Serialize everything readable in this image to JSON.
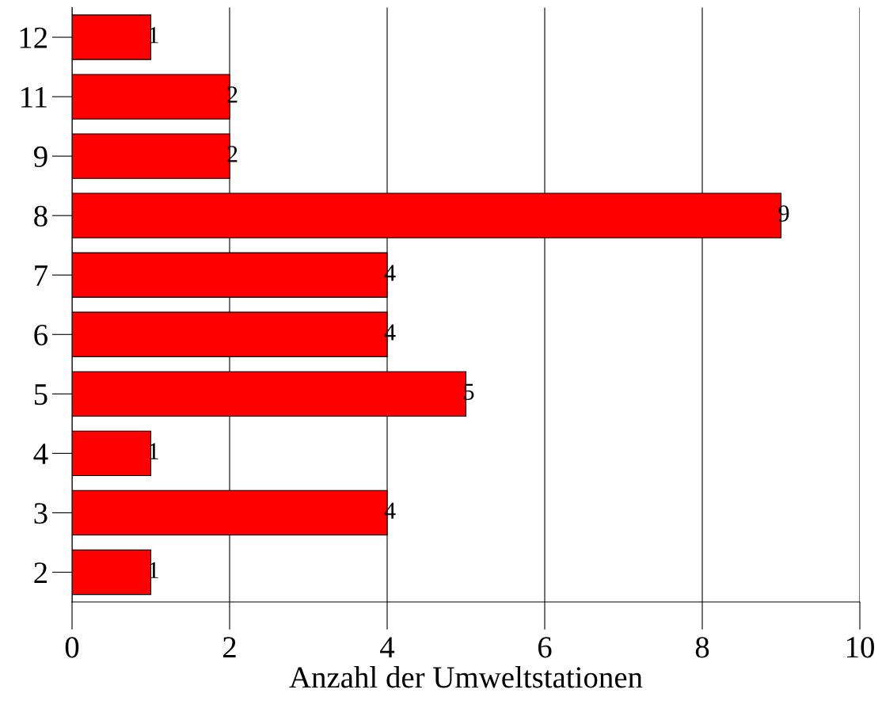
{
  "chart_data": {
    "type": "bar",
    "orientation": "horizontal",
    "xlabel": "Anzahl der Umweltstationen",
    "categories": [
      "12",
      "11",
      "9",
      "8",
      "7",
      "6",
      "5",
      "4",
      "3",
      "2"
    ],
    "values": [
      1,
      2,
      2,
      9,
      4,
      4,
      5,
      1,
      4,
      1
    ],
    "color": "#ff0000",
    "xlim": [
      0,
      10
    ],
    "xticks": [
      0,
      2,
      4,
      6,
      8,
      10
    ],
    "grid": "x",
    "data_labels": true
  }
}
